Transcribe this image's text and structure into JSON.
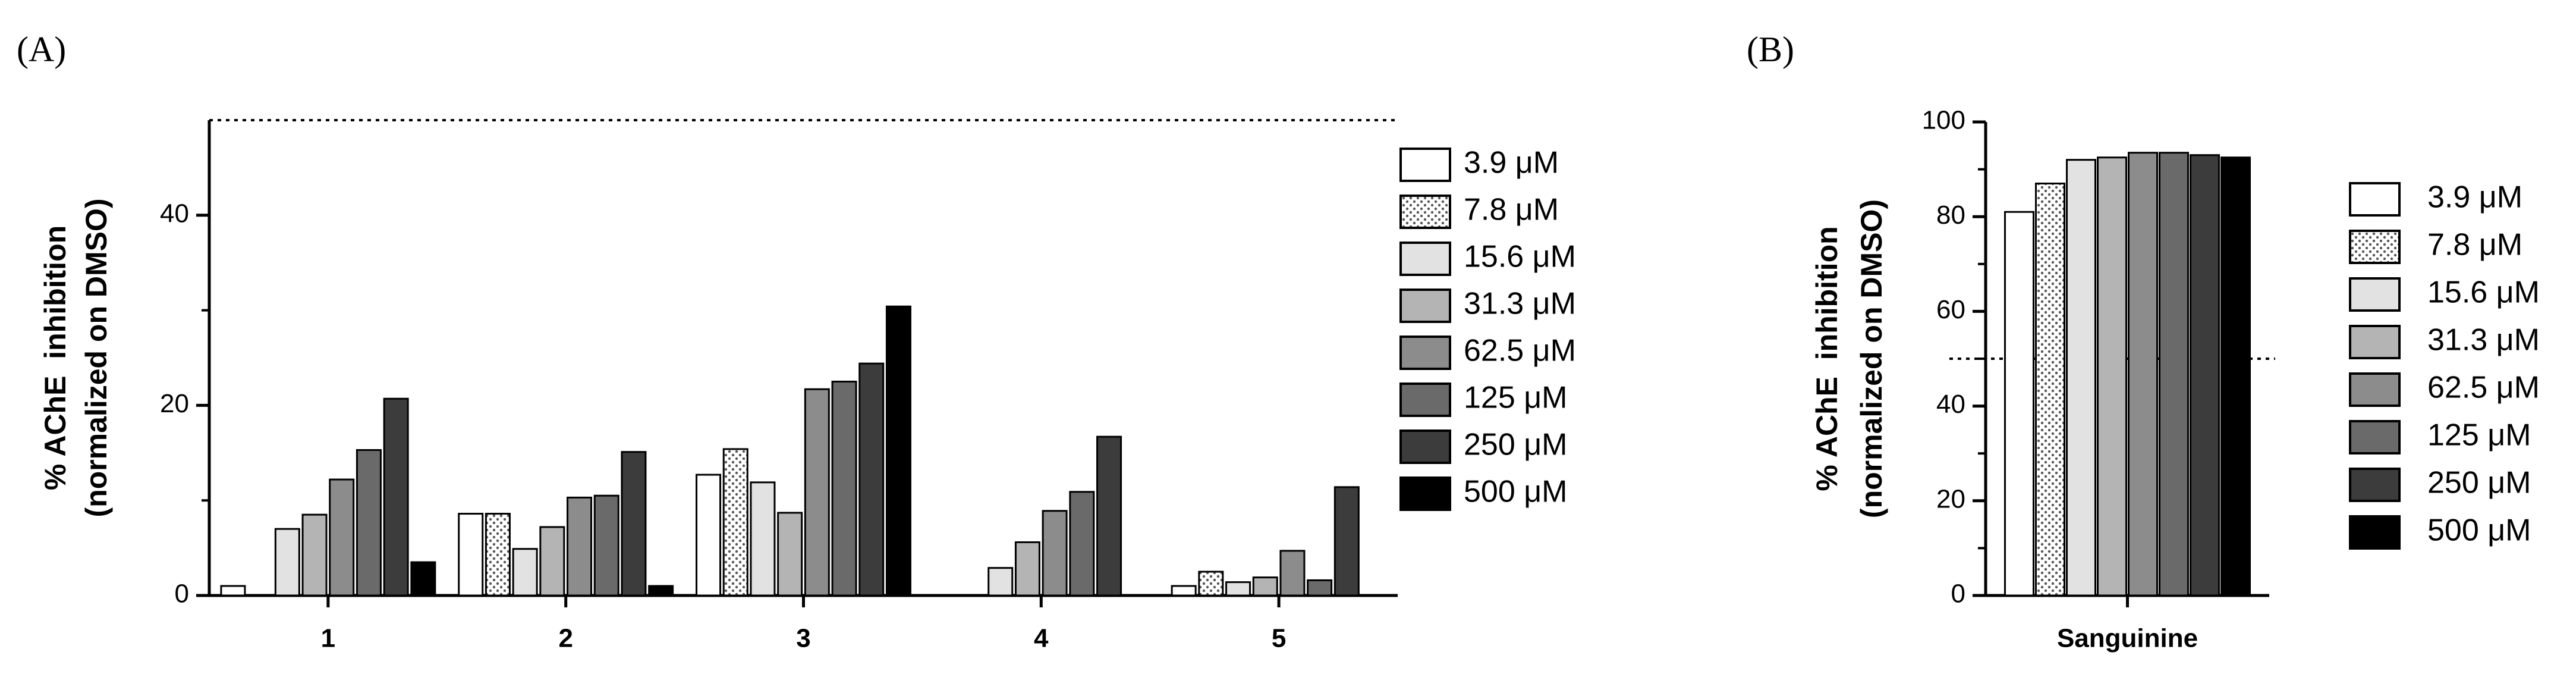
{
  "chart_data": [
    {
      "type": "bar",
      "panel_label": "(A)",
      "ylabel": [
        "% AChE  inhibition",
        "(normalized on DMSO)"
      ],
      "categories": [
        "1",
        "2",
        "3",
        "4",
        "5"
      ],
      "series": [
        {
          "name": "3.9 μM",
          "color": "#ffffff",
          "values": [
            1.0,
            8.6,
            12.7,
            null,
            1.0
          ]
        },
        {
          "name": "7.8 μM",
          "color": "#ffffff",
          "pattern": "dotted",
          "values": [
            null,
            8.6,
            15.4,
            null,
            2.5
          ]
        },
        {
          "name": "15.6 μM",
          "color": "#e2e2e2",
          "values": [
            7.0,
            4.9,
            11.9,
            2.9,
            1.4
          ]
        },
        {
          "name": "31.3 μM",
          "color": "#b4b4b4",
          "values": [
            8.5,
            7.2,
            8.7,
            5.6,
            1.9
          ]
        },
        {
          "name": "62.5 μM",
          "color": "#8c8c8c",
          "values": [
            12.2,
            10.3,
            21.7,
            8.9,
            4.7
          ]
        },
        {
          "name": "125 μM",
          "color": "#6a6a6a",
          "values": [
            15.3,
            10.5,
            22.5,
            10.9,
            1.6
          ]
        },
        {
          "name": "250 μM",
          "color": "#3c3c3c",
          "values": [
            20.7,
            15.1,
            24.4,
            16.7,
            11.4
          ]
        },
        {
          "name": "500 μM",
          "color": "#000000",
          "values": [
            3.5,
            1.0,
            30.4,
            null,
            null
          ]
        }
      ],
      "ylim": [
        0,
        50
      ],
      "yticks": [
        0,
        20,
        40
      ],
      "minor_yticks": [
        10,
        30
      ],
      "reference_line": 50
    },
    {
      "type": "bar",
      "panel_label": "(B)",
      "ylabel": [
        "% AChE  inhibition",
        "(normalized on DMSO)"
      ],
      "categories": [
        "Sanguinine"
      ],
      "series": [
        {
          "name": "3.9 μM",
          "color": "#ffffff",
          "values": [
            81
          ]
        },
        {
          "name": "7.8 μM",
          "color": "#ffffff",
          "pattern": "dotted",
          "values": [
            87
          ]
        },
        {
          "name": "15.6 μM",
          "color": "#e2e2e2",
          "values": [
            92
          ]
        },
        {
          "name": "31.3 μM",
          "color": "#b4b4b4",
          "values": [
            92.5
          ]
        },
        {
          "name": "62.5 μM",
          "color": "#8c8c8c",
          "values": [
            93.5
          ]
        },
        {
          "name": "125 μM",
          "color": "#6a6a6a",
          "values": [
            93.5
          ]
        },
        {
          "name": "250 μM",
          "color": "#3c3c3c",
          "values": [
            93
          ]
        },
        {
          "name": "500 μM",
          "color": "#000000",
          "values": [
            92.5
          ]
        }
      ],
      "ylim": [
        0,
        100
      ],
      "yticks": [
        0,
        20,
        40,
        60,
        80,
        100
      ],
      "minor_yticks": [
        10,
        30,
        50,
        70,
        90
      ],
      "reference_line": 50
    }
  ]
}
